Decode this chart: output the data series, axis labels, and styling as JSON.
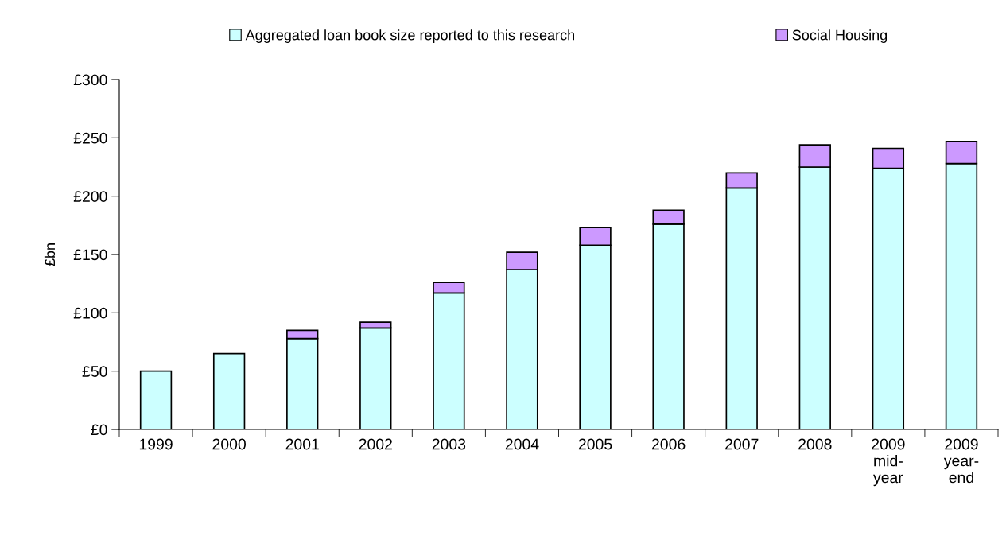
{
  "chart_data": {
    "type": "bar",
    "stacked": true,
    "ylabel": "£bn",
    "categories": [
      "1999",
      "2000",
      "2001",
      "2002",
      "2003",
      "2004",
      "2005",
      "2006",
      "2007",
      "2008",
      "2009\nmid-\nyear",
      "2009\nyear-\nend"
    ],
    "series": [
      {
        "name": "Aggregated loan book size reported to this research",
        "color": "#ccffff",
        "values": [
          50,
          65,
          78,
          87,
          117,
          137,
          158,
          176,
          207,
          225,
          224,
          228
        ]
      },
      {
        "name": "Social Housing",
        "color": "#cc99ff",
        "values": [
          null,
          null,
          7,
          5,
          9,
          15,
          15,
          12,
          13,
          19,
          17,
          19
        ]
      }
    ],
    "ylim": [
      0,
      300
    ],
    "yticks": [
      {
        "value": 0,
        "label": "£0"
      },
      {
        "value": 50,
        "label": "£50"
      },
      {
        "value": 100,
        "label": "£100"
      },
      {
        "value": 150,
        "label": "£150"
      },
      {
        "value": 200,
        "label": "£200"
      },
      {
        "value": 250,
        "label": "£250"
      },
      {
        "value": 300,
        "label": "£300"
      }
    ],
    "grid": false,
    "legend": "top"
  }
}
